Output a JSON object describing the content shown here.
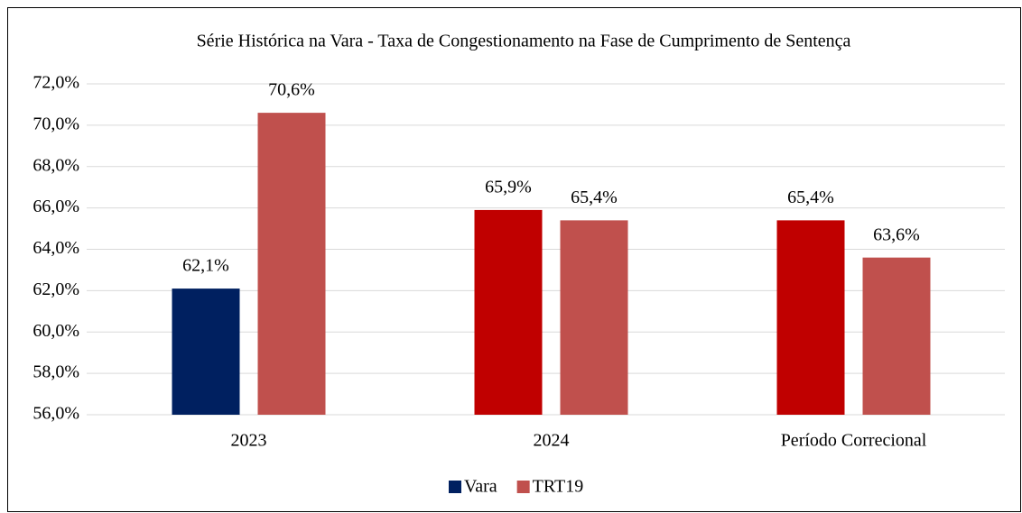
{
  "chart_data": {
    "type": "bar",
    "title": "Série Histórica na Vara - Taxa de Congestionamento na Fase de Cumprimento de Sentença",
    "categories": [
      "2023",
      "2024",
      "Período Correcional"
    ],
    "series": [
      {
        "name": "Vara",
        "color": "#002060",
        "colors": [
          "#002060",
          "#c00000",
          "#c00000"
        ],
        "values": [
          62.1,
          65.9,
          65.4
        ],
        "value_labels": [
          "62,1%",
          "65,9%",
          "65,4%"
        ]
      },
      {
        "name": "TRT19",
        "color": "#c0504d",
        "values": [
          70.6,
          65.4,
          63.6
        ],
        "value_labels": [
          "70,6%",
          "65,4%",
          "63,6%"
        ]
      }
    ],
    "ylim": [
      56,
      72
    ],
    "yticks": [
      {
        "value": 56,
        "label": "56,0%"
      },
      {
        "value": 58,
        "label": "58,0%"
      },
      {
        "value": 60,
        "label": "60,0%"
      },
      {
        "value": 62,
        "label": "62,0%"
      },
      {
        "value": 64,
        "label": "64,0%"
      },
      {
        "value": 66,
        "label": "66,0%"
      },
      {
        "value": 68,
        "label": "68,0%"
      },
      {
        "value": 70,
        "label": "70,0%"
      },
      {
        "value": 72,
        "label": "72,0%"
      }
    ],
    "grid": true,
    "legend": "bottom"
  }
}
